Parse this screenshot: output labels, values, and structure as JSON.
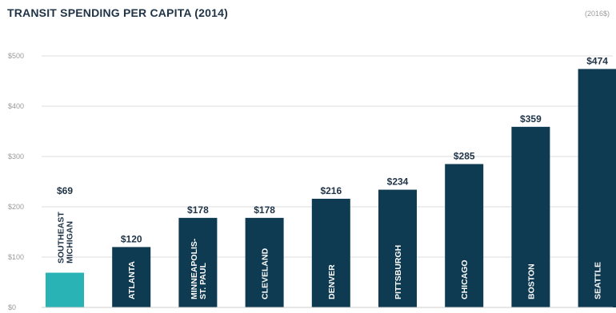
{
  "chart_data": {
    "type": "bar",
    "title": "TRANSIT SPENDING PER CAPITA (2014)",
    "unit_note": "(2016$)",
    "categories": [
      "SOUTHEAST MICHIGAN",
      "ATLANTA",
      "MINNEAPOLIS-ST. PAUL",
      "CLEVELAND",
      "DENVER",
      "PITTSBURGH",
      "CHICAGO",
      "BOSTON",
      "SEATTLE"
    ],
    "category_lines": [
      [
        "SOUTHEAST",
        "MICHIGAN"
      ],
      [
        "ATLANTA"
      ],
      [
        "MINNEAPOLIS-",
        "ST. PAUL"
      ],
      [
        "CLEVELAND"
      ],
      [
        "DENVER"
      ],
      [
        "PITTSBURGH"
      ],
      [
        "CHICAGO"
      ],
      [
        "BOSTON"
      ],
      [
        "SEATTLE"
      ]
    ],
    "values": [
      69,
      120,
      178,
      178,
      216,
      234,
      285,
      359,
      474
    ],
    "value_labels": [
      "$69",
      "$120",
      "$178",
      "$178",
      "$216",
      "$234",
      "$285",
      "$359",
      "$474"
    ],
    "highlight_index": 0,
    "colors": {
      "bar": "#0e3a52",
      "highlight": "#2ab3b5",
      "grid": "#dddddd",
      "label": "#1f3347",
      "axis_text": "#9a9a9a"
    },
    "ylim": [
      0,
      500
    ],
    "yticks": [
      0,
      100,
      200,
      300,
      400,
      500
    ],
    "ytick_labels": [
      "$0",
      "$100",
      "$200",
      "$300",
      "$400",
      "$500"
    ],
    "grid": true
  }
}
